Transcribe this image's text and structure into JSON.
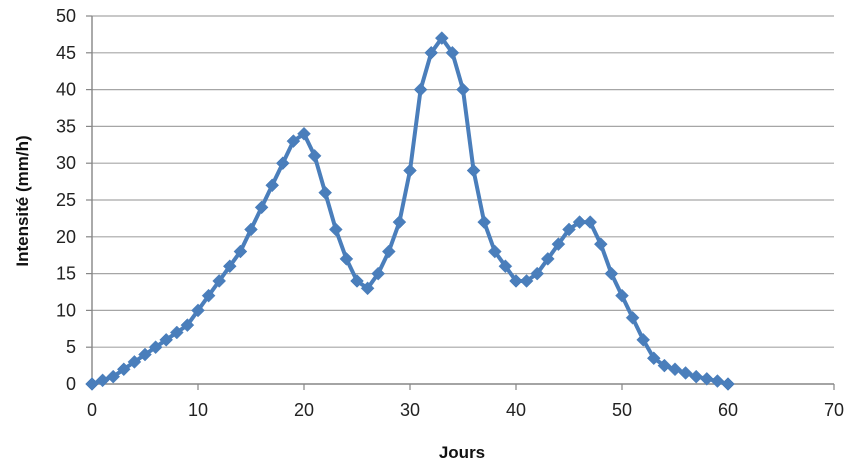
{
  "chart_data": {
    "type": "line",
    "title": "",
    "xlabel": "Jours",
    "ylabel": "Intensité (mm/h)",
    "xlim": [
      0,
      70
    ],
    "ylim": [
      0,
      50
    ],
    "x_ticks": [
      0,
      10,
      20,
      30,
      40,
      50,
      60,
      70
    ],
    "y_ticks": [
      0,
      5,
      10,
      15,
      20,
      25,
      30,
      35,
      40,
      45,
      50
    ],
    "grid": "horizontal",
    "legend": "none",
    "colors": {
      "series": "#4a7ebb",
      "grid": "#a6a6a6",
      "axis": "#868686"
    },
    "series": [
      {
        "marker": "diamond-icon",
        "x": [
          0,
          1,
          2,
          3,
          4,
          5,
          6,
          7,
          8,
          9,
          10,
          11,
          12,
          13,
          14,
          15,
          16,
          17,
          18,
          19,
          20,
          21,
          22,
          23,
          24,
          25,
          26,
          27,
          28,
          29,
          30,
          31,
          32,
          33,
          34,
          35,
          36,
          37,
          38,
          39,
          40,
          41,
          42,
          43,
          44,
          45,
          46,
          47,
          48,
          49,
          50,
          51,
          52,
          53,
          54,
          55,
          56,
          57,
          58,
          59,
          60
        ],
        "y": [
          0,
          0.5,
          1,
          2,
          3,
          4,
          5,
          6,
          7,
          8,
          10,
          12,
          14,
          16,
          18,
          21,
          24,
          27,
          30,
          33,
          34,
          31,
          26,
          21,
          17,
          14,
          13,
          15,
          18,
          22,
          29,
          40,
          45,
          47,
          45,
          40,
          29,
          22,
          18,
          16,
          14,
          14,
          15,
          17,
          19,
          21,
          22,
          22,
          19,
          15,
          12,
          9,
          6,
          3.5,
          2.5,
          2,
          1.5,
          1,
          0.7,
          0.4,
          0
        ]
      }
    ]
  }
}
